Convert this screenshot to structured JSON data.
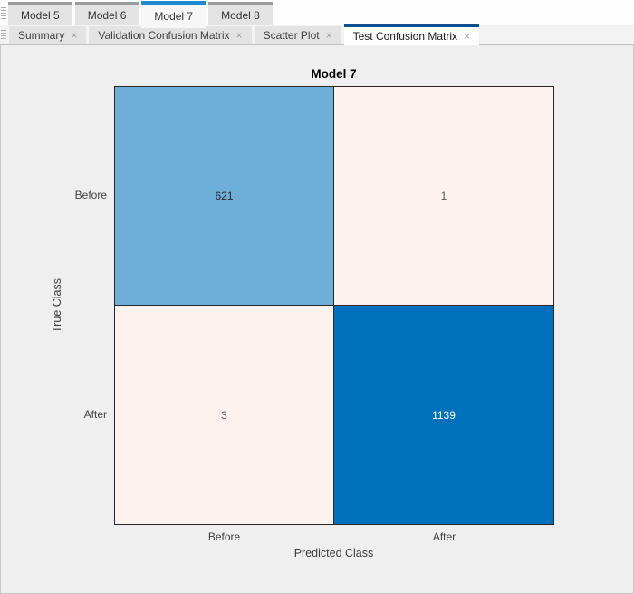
{
  "colors": {
    "accent_model_tab": "#1E8BD1",
    "accent_doc_tab": "#0B5191",
    "panel_bg": "#EFEFEF",
    "grid_line": "#262626"
  },
  "icons": {
    "close": "×"
  },
  "model_tab_bar": {
    "tabs": [
      {
        "label": "Model 5",
        "active": false
      },
      {
        "label": "Model 6",
        "active": false
      },
      {
        "label": "Model 7",
        "active": true
      },
      {
        "label": "Model 8",
        "active": false
      }
    ]
  },
  "document_tab_bar": {
    "tabs": [
      {
        "label": "Summary",
        "active": false
      },
      {
        "label": "Validation Confusion Matrix",
        "active": false
      },
      {
        "label": "Scatter Plot",
        "active": false
      },
      {
        "label": "Test Confusion Matrix",
        "active": true
      }
    ]
  },
  "chart_data": {
    "type": "heatmap",
    "title": "Model 7",
    "xlabel": "Predicted Class",
    "ylabel": "True Class",
    "x_categories": [
      "Before",
      "After"
    ],
    "y_categories": [
      "Before",
      "After"
    ],
    "values": [
      [
        621,
        1
      ],
      [
        3,
        1139
      ]
    ],
    "cell_colors": [
      [
        "#6FAED9",
        "#FDF2EE"
      ],
      [
        "#FDF2EE",
        "#0071BC"
      ]
    ],
    "cell_text_colors": [
      [
        "#262626",
        "#595959"
      ],
      [
        "#595959",
        "#FFFFFF"
      ]
    ],
    "legend": "none",
    "grid": "on"
  }
}
